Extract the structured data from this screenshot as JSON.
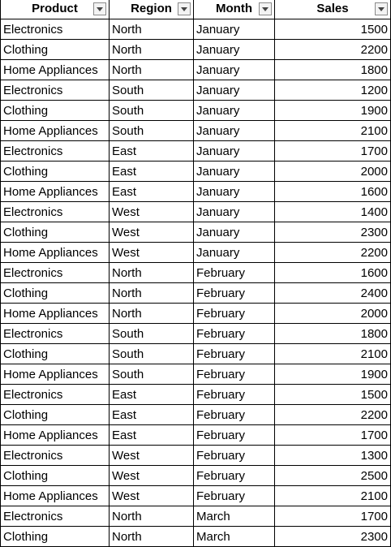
{
  "header": {
    "product": "Product",
    "region": "Region",
    "month": "Month",
    "sales": "Sales",
    "filter_icon": "dropdown-arrow-icon"
  },
  "rows": [
    {
      "product": "Electronics",
      "region": "North",
      "month": "January",
      "sales": "1500"
    },
    {
      "product": "Clothing",
      "region": "North",
      "month": "January",
      "sales": "2200"
    },
    {
      "product": "Home Appliances",
      "region": "North",
      "month": "January",
      "sales": "1800"
    },
    {
      "product": "Electronics",
      "region": "South",
      "month": "January",
      "sales": "1200"
    },
    {
      "product": "Clothing",
      "region": "South",
      "month": "January",
      "sales": "1900"
    },
    {
      "product": "Home Appliances",
      "region": "South",
      "month": "January",
      "sales": "2100"
    },
    {
      "product": "Electronics",
      "region": "East",
      "month": "January",
      "sales": "1700"
    },
    {
      "product": "Clothing",
      "region": "East",
      "month": "January",
      "sales": "2000"
    },
    {
      "product": "Home Appliances",
      "region": "East",
      "month": "January",
      "sales": "1600"
    },
    {
      "product": "Electronics",
      "region": "West",
      "month": "January",
      "sales": "1400"
    },
    {
      "product": "Clothing",
      "region": "West",
      "month": "January",
      "sales": "2300"
    },
    {
      "product": "Home Appliances",
      "region": "West",
      "month": "January",
      "sales": "2200"
    },
    {
      "product": "Electronics",
      "region": "North",
      "month": "February",
      "sales": "1600"
    },
    {
      "product": "Clothing",
      "region": "North",
      "month": "February",
      "sales": "2400"
    },
    {
      "product": "Home Appliances",
      "region": "North",
      "month": "February",
      "sales": "2000"
    },
    {
      "product": "Electronics",
      "region": "South",
      "month": "February",
      "sales": "1800"
    },
    {
      "product": "Clothing",
      "region": "South",
      "month": "February",
      "sales": "2100"
    },
    {
      "product": "Home Appliances",
      "region": "South",
      "month": "February",
      "sales": "1900"
    },
    {
      "product": "Electronics",
      "region": "East",
      "month": "February",
      "sales": "1500"
    },
    {
      "product": "Clothing",
      "region": "East",
      "month": "February",
      "sales": "2200"
    },
    {
      "product": "Home Appliances",
      "region": "East",
      "month": "February",
      "sales": "1700"
    },
    {
      "product": "Electronics",
      "region": "West",
      "month": "February",
      "sales": "1300"
    },
    {
      "product": "Clothing",
      "region": "West",
      "month": "February",
      "sales": "2500"
    },
    {
      "product": "Home Appliances",
      "region": "West",
      "month": "February",
      "sales": "2100"
    },
    {
      "product": "Electronics",
      "region": "North",
      "month": "March",
      "sales": "1700"
    },
    {
      "product": "Clothing",
      "region": "North",
      "month": "March",
      "sales": "2300"
    }
  ]
}
